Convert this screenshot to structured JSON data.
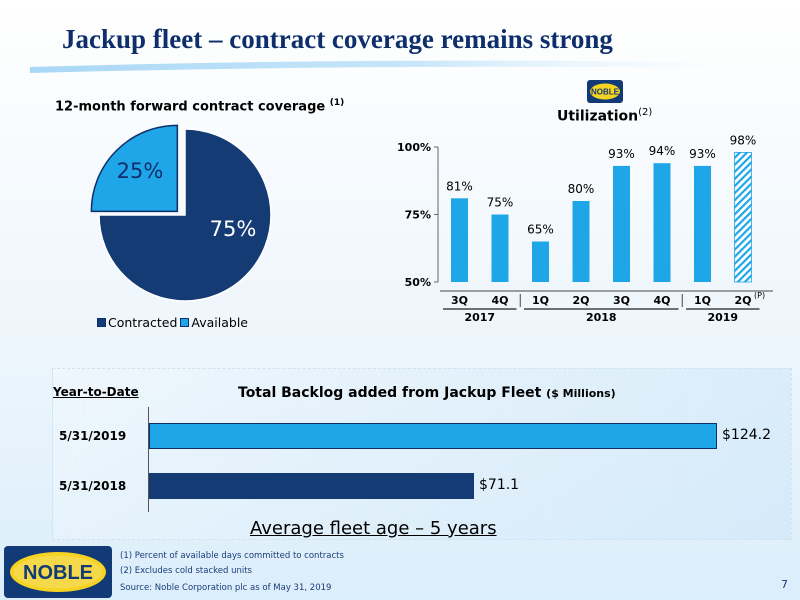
{
  "header": {
    "title": "Jackup fleet – contract coverage remains strong"
  },
  "pie": {
    "title": "12-month forward contract coverage",
    "title_note": "(1)",
    "legend": [
      {
        "label": "Contracted",
        "color": "#143b73"
      },
      {
        "label": "Available",
        "color": "#1fa6e8"
      }
    ]
  },
  "utilization": {
    "logo_text": "NOBLE",
    "title": "Utilization",
    "title_note": "(2)",
    "projection_note": "(P)"
  },
  "backlog": {
    "period_label": "Year-to-Date",
    "title": "Total Backlog added from Jackup Fleet",
    "title_unit": "($ Millions)"
  },
  "fleet_age": "Average fleet age – 5 years",
  "logo": {
    "text": "NOBLE"
  },
  "footnotes": [
    "(1) Percent of available days committed to contracts",
    "(2) Excludes cold stacked units",
    "Source: Noble Corporation plc as of May 31, 2019"
  ],
  "page_number": "7",
  "chart_data": [
    {
      "type": "pie",
      "title": "12-month forward contract coverage",
      "slices": [
        {
          "label": "Contracted",
          "value": 75,
          "value_label": "75%",
          "color": "#143b73"
        },
        {
          "label": "Available",
          "value": 25,
          "value_label": "25%",
          "color": "#1fa6e8"
        }
      ]
    },
    {
      "type": "bar",
      "title": "Utilization",
      "categories": [
        "3Q",
        "4Q",
        "1Q",
        "2Q",
        "3Q",
        "4Q",
        "1Q",
        "2Q"
      ],
      "groups": [
        {
          "label": "2017",
          "count": 2
        },
        {
          "label": "2018",
          "count": 4
        },
        {
          "label": "2019",
          "count": 2
        }
      ],
      "values": [
        81,
        75,
        65,
        80,
        93,
        94,
        93,
        98
      ],
      "value_labels": [
        "81%",
        "75%",
        "65%",
        "80%",
        "93%",
        "94%",
        "93%",
        "98%"
      ],
      "projected": [
        false,
        false,
        false,
        false,
        false,
        false,
        false,
        true
      ],
      "ylim": [
        50,
        100
      ],
      "yticks": [
        {
          "value": 100,
          "label": "100%"
        },
        {
          "value": 75,
          "label": "75%"
        },
        {
          "value": 50,
          "label": "50%"
        }
      ],
      "color": "#1fa6e8"
    },
    {
      "type": "bar",
      "orientation": "horizontal",
      "title": "Total Backlog added from Jackup Fleet ($ Millions)",
      "categories": [
        "5/31/2019",
        "5/31/2018"
      ],
      "values": [
        124.2,
        71.1
      ],
      "value_labels": [
        "$124.2",
        "$71.1"
      ],
      "colors": [
        "#1fa6e8",
        "#143b73"
      ],
      "xlim": [
        0,
        124.2
      ]
    }
  ]
}
